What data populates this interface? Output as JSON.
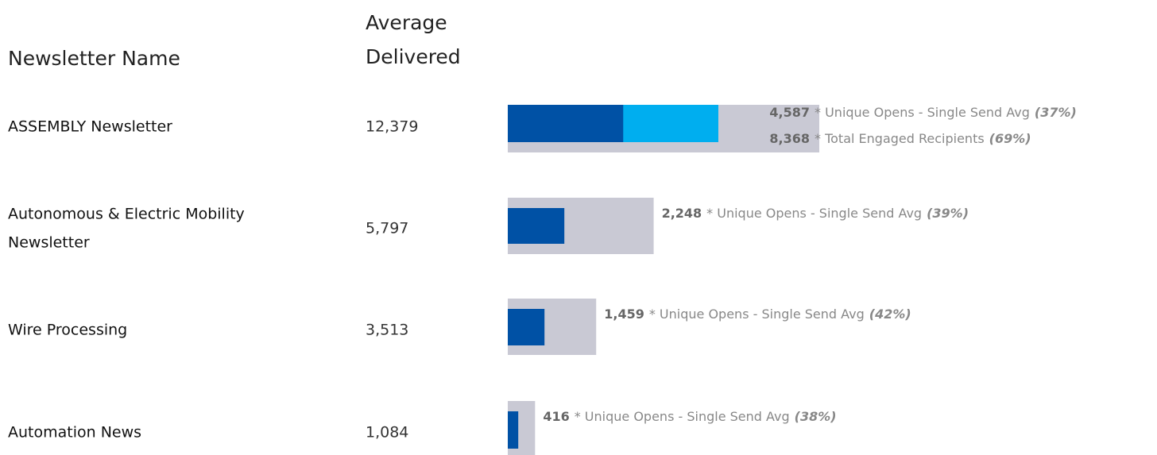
{
  "header": {
    "name": "Newsletter Name",
    "delivered_top": "Average",
    "delivered_bottom": "Delivered"
  },
  "rows": [
    {
      "name": [
        "ASSEMBLY Newsletter"
      ],
      "delivered": {
        "value": 12379,
        "label": "12,379"
      },
      "notes": [
        {
          "value": 4587,
          "label": "4,587",
          "text": "* Unique Opens - Single Send Avg",
          "pct": "(37%)",
          "color": "#0051a5"
        },
        {
          "value": 8368,
          "label": "8,368",
          "text": "* Total Engaged Recipients",
          "pct": "(69%)",
          "color": "#00aeef"
        }
      ]
    },
    {
      "name": [
        "Autonomous & Electric Mobility",
        "Newsletter"
      ],
      "delivered": {
        "value": 5797,
        "label": "5,797"
      },
      "notes": [
        {
          "value": 2248,
          "label": "2,248",
          "text": "* Unique Opens - Single Send Avg",
          "pct": "(39%)",
          "color": "#0051a5"
        }
      ]
    },
    {
      "name": [
        "Wire Processing"
      ],
      "delivered": {
        "value": 3513,
        "label": "3,513"
      },
      "notes": [
        {
          "value": 1459,
          "label": "1,459",
          "text": "* Unique Opens - Single Send Avg",
          "pct": "(42%)",
          "color": "#0051a5"
        }
      ]
    },
    {
      "name": [
        "Automation News"
      ],
      "delivered": {
        "value": 1084,
        "label": "1,084"
      },
      "notes": [
        {
          "value": 416,
          "label": "416",
          "text": "* Unique Opens - Single Send Avg",
          "pct": "(38%)",
          "color": "#0051a5"
        }
      ]
    }
  ],
  "background_color": "#c9c9d4"
}
